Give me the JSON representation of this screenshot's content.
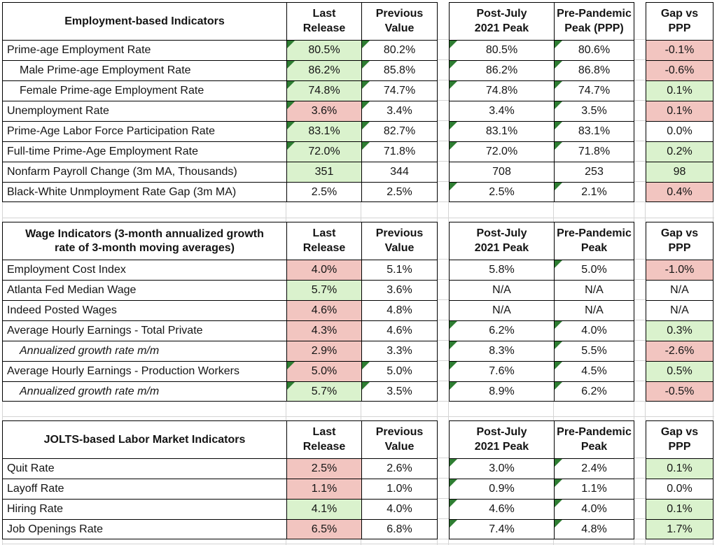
{
  "colors": {
    "positive_fill": "#daf2cd",
    "negative_fill": "#f2c5c0",
    "flag_triangle": "#2e7d32",
    "table_border": "#000000",
    "sheet_gridline": "#d4d4d4"
  },
  "tables": [
    {
      "title": "Employment-based Indicators",
      "headers": [
        "Last\nRelease",
        "Previous\nValue",
        "Post-July\n2021 Peak",
        "Pre-Pandemic\nPeak (PPP)",
        "Gap vs\nPPP"
      ],
      "rows": [
        {
          "name": "Prime-age Employment Rate",
          "indent": false,
          "italic": false,
          "cells": [
            {
              "v": "80.5%",
              "bg": "green",
              "tri": true
            },
            {
              "v": "80.2%",
              "bg": "white",
              "tri": true
            },
            {
              "v": "80.5%",
              "bg": "white",
              "tri": true
            },
            {
              "v": "80.6%",
              "bg": "white",
              "tri": true
            },
            {
              "v": "-0.1%",
              "bg": "pink",
              "tri": false
            }
          ]
        },
        {
          "name": "Male Prime-age Employment Rate",
          "indent": true,
          "italic": false,
          "cells": [
            {
              "v": "86.2%",
              "bg": "green",
              "tri": true
            },
            {
              "v": "85.8%",
              "bg": "white",
              "tri": true
            },
            {
              "v": "86.2%",
              "bg": "white",
              "tri": true
            },
            {
              "v": "86.8%",
              "bg": "white",
              "tri": true
            },
            {
              "v": "-0.6%",
              "bg": "pink",
              "tri": false
            }
          ]
        },
        {
          "name": "Female Prime-age Employment Rate",
          "indent": true,
          "italic": false,
          "cells": [
            {
              "v": "74.8%",
              "bg": "green",
              "tri": true
            },
            {
              "v": "74.7%",
              "bg": "white",
              "tri": true
            },
            {
              "v": "74.8%",
              "bg": "white",
              "tri": true
            },
            {
              "v": "74.7%",
              "bg": "white",
              "tri": true
            },
            {
              "v": "0.1%",
              "bg": "green",
              "tri": false
            }
          ]
        },
        {
          "name": "Unemployment Rate",
          "indent": false,
          "italic": false,
          "cells": [
            {
              "v": "3.6%",
              "bg": "pink",
              "tri": true
            },
            {
              "v": "3.4%",
              "bg": "white",
              "tri": true
            },
            {
              "v": "3.4%",
              "bg": "white",
              "tri": false
            },
            {
              "v": "3.5%",
              "bg": "white",
              "tri": true
            },
            {
              "v": "0.1%",
              "bg": "pink",
              "tri": false
            }
          ]
        },
        {
          "name": "Prime-Age Labor Force Participation Rate",
          "indent": false,
          "italic": false,
          "cells": [
            {
              "v": "83.1%",
              "bg": "green",
              "tri": true
            },
            {
              "v": "82.7%",
              "bg": "white",
              "tri": true
            },
            {
              "v": "83.1%",
              "bg": "white",
              "tri": true
            },
            {
              "v": "83.1%",
              "bg": "white",
              "tri": true
            },
            {
              "v": "0.0%",
              "bg": "white",
              "tri": false
            }
          ]
        },
        {
          "name": "Full-time Prime-Age Employment Rate",
          "indent": false,
          "italic": false,
          "cells": [
            {
              "v": "72.0%",
              "bg": "green",
              "tri": true
            },
            {
              "v": "71.8%",
              "bg": "white",
              "tri": true
            },
            {
              "v": "72.0%",
              "bg": "white",
              "tri": true
            },
            {
              "v": "71.8%",
              "bg": "white",
              "tri": true
            },
            {
              "v": "0.2%",
              "bg": "green",
              "tri": false
            }
          ]
        },
        {
          "name": "Nonfarm Payroll Change (3m MA, Thousands)",
          "indent": false,
          "italic": false,
          "cells": [
            {
              "v": "351",
              "bg": "green",
              "tri": false
            },
            {
              "v": "344",
              "bg": "white",
              "tri": false
            },
            {
              "v": "708",
              "bg": "white",
              "tri": false
            },
            {
              "v": "253",
              "bg": "white",
              "tri": false
            },
            {
              "v": "98",
              "bg": "green",
              "tri": false
            }
          ]
        },
        {
          "name": "Black-White Unmployment Rate Gap (3m MA)",
          "indent": false,
          "italic": false,
          "cells": [
            {
              "v": "2.5%",
              "bg": "white",
              "tri": false
            },
            {
              "v": "2.5%",
              "bg": "white",
              "tri": false
            },
            {
              "v": "2.5%",
              "bg": "white",
              "tri": true
            },
            {
              "v": "2.1%",
              "bg": "white",
              "tri": true
            },
            {
              "v": "0.4%",
              "bg": "pink",
              "tri": false
            }
          ]
        }
      ]
    },
    {
      "title": "Wage Indicators (3-month annualized growth\nrate of 3-month moving averages)",
      "headers": [
        "Last\nRelease",
        "Previous\nValue",
        "Post-July\n2021 Peak",
        "Pre-Pandemic\nPeak",
        "Gap vs\nPPP"
      ],
      "rows": [
        {
          "name": "Employment Cost Index",
          "indent": false,
          "italic": false,
          "cells": [
            {
              "v": "4.0%",
              "bg": "pink",
              "tri": false
            },
            {
              "v": "5.1%",
              "bg": "white",
              "tri": false
            },
            {
              "v": "5.8%",
              "bg": "white",
              "tri": false
            },
            {
              "v": "5.0%",
              "bg": "white",
              "tri": true
            },
            {
              "v": "-1.0%",
              "bg": "pink",
              "tri": false
            }
          ]
        },
        {
          "name": "Atlanta Fed Median Wage",
          "indent": false,
          "italic": false,
          "cells": [
            {
              "v": "5.7%",
              "bg": "green",
              "tri": false
            },
            {
              "v": "3.6%",
              "bg": "white",
              "tri": false
            },
            {
              "v": "N/A",
              "bg": "white",
              "tri": false
            },
            {
              "v": "N/A",
              "bg": "white",
              "tri": false
            },
            {
              "v": "N/A",
              "bg": "white",
              "tri": false
            }
          ]
        },
        {
          "name": "Indeed Posted Wages",
          "indent": false,
          "italic": false,
          "cells": [
            {
              "v": "4.6%",
              "bg": "pink",
              "tri": false
            },
            {
              "v": "4.8%",
              "bg": "white",
              "tri": false
            },
            {
              "v": "N/A",
              "bg": "white",
              "tri": false
            },
            {
              "v": "N/A",
              "bg": "white",
              "tri": false
            },
            {
              "v": "N/A",
              "bg": "white",
              "tri": false
            }
          ]
        },
        {
          "name": "Average Hourly Earnings - Total Private",
          "indent": false,
          "italic": false,
          "cells": [
            {
              "v": "4.3%",
              "bg": "pink",
              "tri": false
            },
            {
              "v": "4.6%",
              "bg": "white",
              "tri": false
            },
            {
              "v": "6.2%",
              "bg": "white",
              "tri": true
            },
            {
              "v": "4.0%",
              "bg": "white",
              "tri": true
            },
            {
              "v": "0.3%",
              "bg": "green",
              "tri": false
            }
          ]
        },
        {
          "name": "Annualized growth rate m/m",
          "indent": true,
          "italic": true,
          "cells": [
            {
              "v": "2.9%",
              "bg": "pink",
              "tri": false
            },
            {
              "v": "3.3%",
              "bg": "white",
              "tri": false
            },
            {
              "v": "8.3%",
              "bg": "white",
              "tri": true
            },
            {
              "v": "5.5%",
              "bg": "white",
              "tri": true
            },
            {
              "v": "-2.6%",
              "bg": "pink",
              "tri": false
            }
          ]
        },
        {
          "name": "Average Hourly Earnings - Production Workers",
          "indent": false,
          "italic": false,
          "cells": [
            {
              "v": "5.0%",
              "bg": "pink",
              "tri": true
            },
            {
              "v": "5.0%",
              "bg": "white",
              "tri": true
            },
            {
              "v": "7.6%",
              "bg": "white",
              "tri": true
            },
            {
              "v": "4.5%",
              "bg": "white",
              "tri": true
            },
            {
              "v": "0.5%",
              "bg": "green",
              "tri": false
            }
          ]
        },
        {
          "name": "Annualized growth rate m/m",
          "indent": true,
          "italic": true,
          "cells": [
            {
              "v": "5.7%",
              "bg": "green",
              "tri": true
            },
            {
              "v": "3.5%",
              "bg": "white",
              "tri": true
            },
            {
              "v": "8.9%",
              "bg": "white",
              "tri": true
            },
            {
              "v": "6.2%",
              "bg": "white",
              "tri": true
            },
            {
              "v": "-0.5%",
              "bg": "pink",
              "tri": false
            }
          ]
        }
      ]
    },
    {
      "title": "JOLTS-based Labor Market Indicators",
      "headers": [
        "Last\nRelease",
        "Previous\nValue",
        "Post-July\n2021 Peak",
        "Pre-Pandemic\nPeak",
        "Gap vs\nPPP"
      ],
      "rows": [
        {
          "name": "Quit Rate",
          "indent": false,
          "italic": false,
          "cells": [
            {
              "v": "2.5%",
              "bg": "pink",
              "tri": false
            },
            {
              "v": "2.6%",
              "bg": "white",
              "tri": false
            },
            {
              "v": "3.0%",
              "bg": "white",
              "tri": true
            },
            {
              "v": "2.4%",
              "bg": "white",
              "tri": true
            },
            {
              "v": "0.1%",
              "bg": "green",
              "tri": false
            }
          ]
        },
        {
          "name": "Layoff Rate",
          "indent": false,
          "italic": false,
          "cells": [
            {
              "v": "1.1%",
              "bg": "pink",
              "tri": false
            },
            {
              "v": "1.0%",
              "bg": "white",
              "tri": false
            },
            {
              "v": "0.9%",
              "bg": "white",
              "tri": true
            },
            {
              "v": "1.1%",
              "bg": "white",
              "tri": true
            },
            {
              "v": "0.0%",
              "bg": "white",
              "tri": false
            }
          ]
        },
        {
          "name": "Hiring Rate",
          "indent": false,
          "italic": false,
          "cells": [
            {
              "v": "4.1%",
              "bg": "green",
              "tri": false
            },
            {
              "v": "4.0%",
              "bg": "white",
              "tri": false
            },
            {
              "v": "4.6%",
              "bg": "white",
              "tri": true
            },
            {
              "v": "4.0%",
              "bg": "white",
              "tri": true
            },
            {
              "v": "0.1%",
              "bg": "green",
              "tri": false
            }
          ]
        },
        {
          "name": "Job Openings Rate",
          "indent": false,
          "italic": false,
          "cells": [
            {
              "v": "6.5%",
              "bg": "pink",
              "tri": false
            },
            {
              "v": "6.8%",
              "bg": "white",
              "tri": false
            },
            {
              "v": "7.4%",
              "bg": "white",
              "tri": true
            },
            {
              "v": "4.8%",
              "bg": "white",
              "tri": true
            },
            {
              "v": "1.7%",
              "bg": "green",
              "tri": false
            }
          ]
        }
      ]
    }
  ]
}
